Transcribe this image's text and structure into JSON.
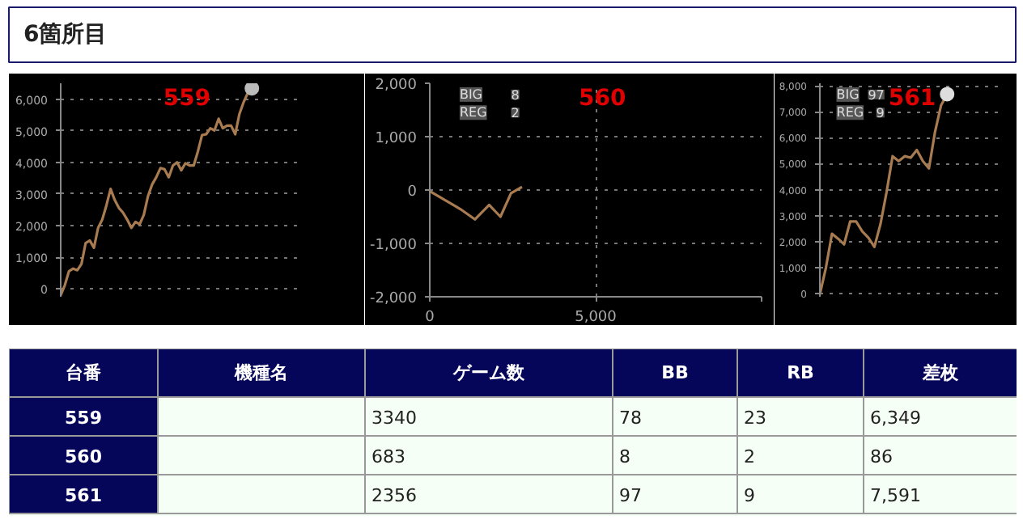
{
  "chart_data": [
    {
      "type": "line",
      "title": "559",
      "categories": [
        null,
        null,
        null,
        null,
        null,
        null,
        null,
        null,
        null,
        null,
        null,
        null,
        null,
        null,
        null,
        null,
        null,
        null,
        null,
        null,
        null,
        null,
        null,
        null,
        null,
        null,
        null,
        null,
        null,
        null,
        null,
        null,
        null,
        null,
        null,
        null,
        null,
        null,
        null,
        null,
        null,
        null,
        null,
        null,
        null,
        null,
        null
      ],
      "ylim": [
        -250,
        6500
      ],
      "yticks": [
        0,
        {
          "value": 1000,
          "label": "1,000"
        },
        {
          "value": 2000,
          "label": "2,000"
        },
        {
          "value": 3000,
          "label": "3,000"
        },
        {
          "value": 4000,
          "label": "4,000"
        },
        {
          "value": 5000,
          "label": "5,000"
        },
        {
          "value": 6000,
          "label": "6,000"
        }
      ],
      "grid": "y",
      "line_style": "solid",
      "series": [
        {
          "type": "line",
          "color": "#a87b50",
          "values": [
            -200,
            120,
            560,
            640,
            590,
            790,
            1450,
            1530,
            1300,
            1930,
            2190,
            2640,
            3160,
            2810,
            2560,
            2410,
            2190,
            1930,
            2120,
            2040,
            2340,
            2930,
            3300,
            3530,
            3820,
            3780,
            3530,
            3900,
            4000,
            3750,
            3970,
            3900,
            3900,
            4340,
            4860,
            4890,
            5080,
            5010,
            5380,
            5080,
            5160,
            5160,
            4890,
            5530,
            5900,
            6190,
            6340
          ]
        },
        {
          "type": "scatter",
          "marker": "circle",
          "color": "#bbbbbb",
          "values": [
            null,
            null,
            null,
            null,
            null,
            null,
            null,
            null,
            null,
            null,
            null,
            null,
            null,
            null,
            null,
            null,
            null,
            null,
            null,
            null,
            null,
            null,
            null,
            null,
            null,
            null,
            null,
            null,
            null,
            null,
            null,
            null,
            null,
            null,
            null,
            null,
            null,
            null,
            null,
            null,
            null,
            null,
            null,
            null,
            null,
            null,
            6340
          ]
        }
      ]
    },
    {
      "type": "line",
      "title": "560",
      "ylim": [
        -2000,
        2000
      ],
      "yticks": [
        {
          "value": -2000,
          "label": "-2,000"
        },
        {
          "value": -1000,
          "label": "-1,000"
        },
        0,
        {
          "value": 1000,
          "label": "1,000"
        },
        {
          "value": 2000,
          "label": "2,000"
        }
      ],
      "xlim": [
        0,
        10000
      ],
      "xticks": [
        0,
        {
          "value": 5000,
          "label": "5,000"
        },
        {
          "value": 10000,
          "label": null
        }
      ],
      "grid": true,
      "line_style": "solid",
      "annotations": [
        "BIG",
        "8",
        "REG",
        "2"
      ],
      "series": [
        {
          "type": "line",
          "color": "#a87b50",
          "x": [
            0,
            550,
            930,
            1360,
            1790,
            2130,
            2450,
            2780
          ],
          "values": [
            -20,
            -220,
            -360,
            -550,
            -280,
            -500,
            -60,
            60
          ]
        }
      ]
    },
    {
      "type": "line",
      "title": "561",
      "categories": [
        null,
        null,
        null,
        null,
        null,
        null,
        null,
        null,
        null,
        null,
        null,
        null,
        null,
        null,
        null,
        null,
        null,
        null,
        null,
        null,
        null,
        null
      ],
      "ylim": [
        -130,
        8100
      ],
      "yticks": [
        0,
        {
          "value": 1000,
          "label": "1,000"
        },
        {
          "value": 2000,
          "label": "2,000"
        },
        {
          "value": 3000,
          "label": "3,000"
        },
        {
          "value": 4000,
          "label": "4,000"
        },
        {
          "value": 5000,
          "label": "5,000"
        },
        {
          "value": 6000,
          "label": "6,000"
        },
        {
          "value": 7000,
          "label": "7,000"
        },
        {
          "value": 8000,
          "label": "8,000"
        }
      ],
      "grid": "y",
      "line_style": "solid",
      "annotations": [
        "BIG",
        "97",
        "REG",
        "9"
      ],
      "series": [
        {
          "type": "line",
          "color": "#a87b50",
          "values": [
            -40,
            990,
            2300,
            2110,
            1890,
            2770,
            2770,
            2390,
            2150,
            1790,
            2670,
            3890,
            5290,
            5100,
            5290,
            5230,
            5530,
            5100,
            4820,
            6220,
            7250,
            7680
          ]
        },
        {
          "type": "scatter",
          "marker": "circle",
          "color": "#dddddd",
          "values": [
            null,
            null,
            null,
            null,
            null,
            null,
            null,
            null,
            null,
            null,
            null,
            null,
            null,
            null,
            null,
            null,
            null,
            null,
            null,
            null,
            null,
            7680
          ]
        }
      ]
    },
    {
      "type": "other",
      "title": "6箇所目",
      "categories": [
        "台番",
        "機種名",
        "ゲーム数",
        "BB",
        "RB",
        "差枚"
      ],
      "y_categories": [
        "559",
        "560",
        "561"
      ],
      "cell_labels": [
        [
          null,
          "3340",
          "78",
          "23",
          "6,349"
        ],
        [
          null,
          "683",
          "8",
          "2",
          "86"
        ],
        [
          null,
          "2356",
          "97",
          "9",
          "7,591"
        ]
      ]
    }
  ]
}
